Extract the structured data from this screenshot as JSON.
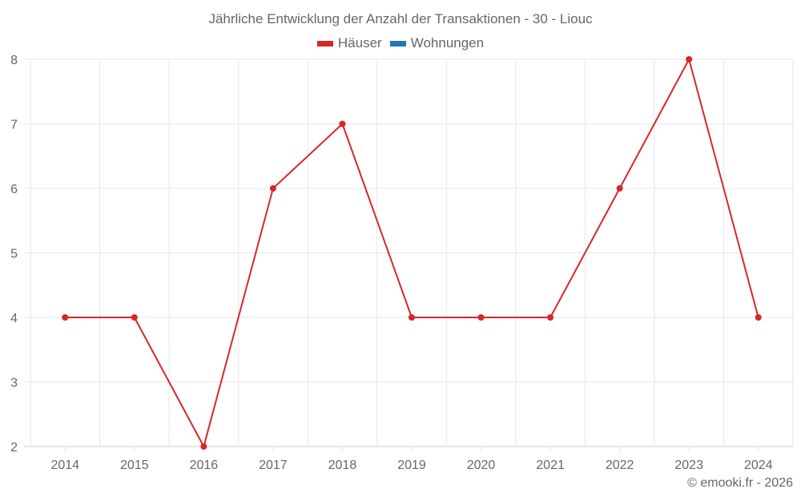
{
  "title": "Jährliche Entwicklung der Anzahl der Transaktionen - 30 - Liouc",
  "legend": [
    {
      "label": "Häuser",
      "color": "#d62728"
    },
    {
      "label": "Wohnungen",
      "color": "#1f77b4"
    }
  ],
  "credit": "© emooki.fr - 2026",
  "chart_data": {
    "type": "line",
    "title": "Jährliche Entwicklung der Anzahl der Transaktionen - 30 - Liouc",
    "xlabel": "",
    "ylabel": "",
    "categories": [
      "2014",
      "2015",
      "2016",
      "2017",
      "2018",
      "2019",
      "2020",
      "2021",
      "2022",
      "2023",
      "2024"
    ],
    "series": [
      {
        "name": "Häuser",
        "color": "#d62728",
        "values": [
          4,
          4,
          2,
          6,
          7,
          4,
          4,
          4,
          6,
          8,
          4
        ]
      },
      {
        "name": "Wohnungen",
        "color": "#1f77b4",
        "values": []
      }
    ],
    "ylim": [
      2,
      8
    ],
    "yticks": [
      2,
      3,
      4,
      5,
      6,
      7,
      8
    ],
    "grid": true,
    "legend_position": "top"
  }
}
